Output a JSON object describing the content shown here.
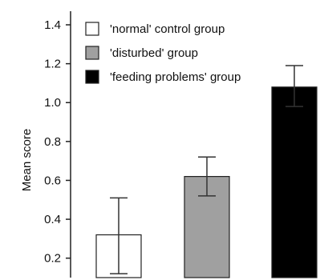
{
  "chart_data": {
    "type": "bar",
    "categories": [
      "'normal' control group",
      "'disturbed' group",
      "'feeding problems' group"
    ],
    "series": [
      {
        "values": [
          0.32,
          0.62,
          1.08
        ],
        "error_low": [
          0.12,
          0.52,
          0.98
        ],
        "error_high": [
          0.51,
          0.72,
          1.19
        ]
      }
    ],
    "bar_colors": [
      "#ffffff",
      "#a0a0a0",
      "#000000"
    ],
    "ylabel": "Mean score",
    "xlabel": "",
    "ylim": [
      0.1,
      1.47
    ],
    "yticks": [
      0.2,
      0.4,
      0.6,
      0.8,
      1.0,
      1.2,
      1.4
    ],
    "ytick_labels": [
      "0.2",
      "0.4",
      "0.6",
      "0.8",
      "1.0",
      "1.2",
      "1.4"
    ],
    "legend": {
      "placement": "top-left",
      "entries": [
        {
          "label": "'normal' control group",
          "color": "#ffffff"
        },
        {
          "label": "'disturbed' group",
          "color": "#a0a0a0"
        },
        {
          "label": "'feeding problems' group",
          "color": "#000000"
        }
      ]
    },
    "grid": false
  }
}
